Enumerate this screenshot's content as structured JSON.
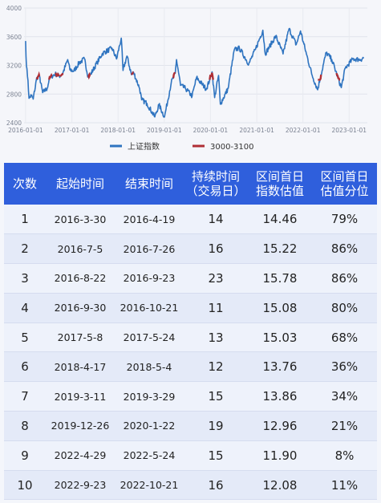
{
  "chart_data": {
    "type": "line",
    "y_ticks": [
      "4000",
      "3600",
      "3200",
      "2800",
      "2400"
    ],
    "y_range": [
      2400,
      4000
    ],
    "x_ticks": [
      "2016-01-01",
      "2017-01-01",
      "2018-01-01",
      "2019-01-01",
      "2020-01-01",
      "2021-01-01",
      "2022-01-01",
      "2023-01-01"
    ],
    "series": [
      {
        "name": "上证指数",
        "color": "#2f74c0",
        "points": [
          [
            "2016-01-01",
            3540
          ],
          [
            "2016-01-08",
            3190
          ],
          [
            "2016-01-20",
            2990
          ],
          [
            "2016-01-28",
            2740
          ],
          [
            "2016-02-15",
            2780
          ],
          [
            "2016-03-01",
            2730
          ],
          [
            "2016-03-30",
            3030
          ],
          [
            "2016-04-19",
            3050
          ],
          [
            "2016-05-15",
            2820
          ],
          [
            "2016-06-20",
            2880
          ],
          [
            "2016-07-05",
            3000
          ],
          [
            "2016-07-26",
            3050
          ],
          [
            "2016-08-22",
            3080
          ],
          [
            "2016-09-23",
            3050
          ],
          [
            "2016-10-21",
            3090
          ],
          [
            "2016-11-29",
            3280
          ],
          [
            "2016-12-16",
            3140
          ],
          [
            "2017-01-16",
            3120
          ],
          [
            "2017-03-01",
            3240
          ],
          [
            "2017-04-10",
            3290
          ],
          [
            "2017-05-10",
            3040
          ],
          [
            "2017-05-24",
            3060
          ],
          [
            "2017-07-20",
            3240
          ],
          [
            "2017-09-01",
            3370
          ],
          [
            "2017-11-14",
            3440
          ],
          [
            "2017-12-20",
            3290
          ],
          [
            "2018-01-26",
            3580
          ],
          [
            "2018-02-09",
            3130
          ],
          [
            "2018-03-12",
            3330
          ],
          [
            "2018-04-17",
            3070
          ],
          [
            "2018-05-04",
            3100
          ],
          [
            "2018-06-20",
            2880
          ],
          [
            "2018-07-06",
            2720
          ],
          [
            "2018-08-17",
            2670
          ],
          [
            "2018-10-18",
            2480
          ],
          [
            "2018-11-20",
            2650
          ],
          [
            "2019-01-03",
            2480
          ],
          [
            "2019-02-25",
            2960
          ],
          [
            "2019-03-29",
            3090
          ],
          [
            "2019-04-08",
            3280
          ],
          [
            "2019-05-10",
            2920
          ],
          [
            "2019-06-17",
            2880
          ],
          [
            "2019-08-09",
            2770
          ],
          [
            "2019-09-13",
            3030
          ],
          [
            "2019-11-29",
            2870
          ],
          [
            "2019-12-26",
            3000
          ],
          [
            "2020-01-14",
            3110
          ],
          [
            "2020-02-03",
            2750
          ],
          [
            "2020-03-05",
            3060
          ],
          [
            "2020-03-19",
            2660
          ],
          [
            "2020-05-20",
            2880
          ],
          [
            "2020-07-08",
            3420
          ],
          [
            "2020-08-17",
            3440
          ],
          [
            "2020-10-30",
            3220
          ],
          [
            "2020-12-21",
            3420
          ],
          [
            "2021-02-18",
            3690
          ],
          [
            "2021-03-09",
            3360
          ],
          [
            "2021-05-31",
            3610
          ],
          [
            "2021-07-28",
            3360
          ],
          [
            "2021-09-13",
            3710
          ],
          [
            "2021-11-09",
            3490
          ],
          [
            "2021-12-13",
            3680
          ],
          [
            "2022-01-28",
            3360
          ],
          [
            "2022-03-15",
            3060
          ],
          [
            "2022-04-27",
            2860
          ],
          [
            "2022-05-24",
            3070
          ],
          [
            "2022-07-04",
            3380
          ],
          [
            "2022-08-17",
            3280
          ],
          [
            "2022-10-31",
            2890
          ],
          [
            "2022-12-01",
            3160
          ],
          [
            "2023-01-31",
            3290
          ],
          [
            "2023-03-31",
            3280
          ],
          [
            "2023-04-28",
            3310
          ]
        ]
      },
      {
        "name": "3000-3100",
        "color": "#b02f35",
        "segments": [
          [
            "2016-03-30",
            "2016-04-19"
          ],
          [
            "2016-07-05",
            "2016-07-26"
          ],
          [
            "2016-08-22",
            "2016-09-23"
          ],
          [
            "2016-09-30",
            "2016-10-21"
          ],
          [
            "2017-05-08",
            "2017-05-24"
          ],
          [
            "2018-04-17",
            "2018-05-04"
          ],
          [
            "2019-03-11",
            "2019-03-29"
          ],
          [
            "2019-12-26",
            "2020-01-22"
          ],
          [
            "2022-04-29",
            "2022-05-24"
          ],
          [
            "2022-09-23",
            "2022-10-21"
          ]
        ]
      }
    ],
    "legend": {
      "position": "bottom-center",
      "entries": [
        "上证指数",
        "3000-3100"
      ]
    },
    "grid": {
      "horizontal": true,
      "vertical": true
    }
  },
  "table": {
    "headers": [
      [
        "次数"
      ],
      [
        "起始时间"
      ],
      [
        "结束时间"
      ],
      [
        "持续时间",
        "（交易日）"
      ],
      [
        "区间首日",
        "指数估值"
      ],
      [
        "区间首日",
        "估值分位"
      ]
    ],
    "rows": [
      [
        "1",
        "2016-3-30",
        "2016-4-19",
        "14",
        "14.46",
        "79%"
      ],
      [
        "2",
        "2016-7-5",
        "2016-7-26",
        "16",
        "15.22",
        "86%"
      ],
      [
        "3",
        "2016-8-22",
        "2016-9-23",
        "23",
        "15.78",
        "86%"
      ],
      [
        "4",
        "2016-9-30",
        "2016-10-21",
        "11",
        "15.08",
        "80%"
      ],
      [
        "5",
        "2017-5-8",
        "2017-5-24",
        "13",
        "15.03",
        "68%"
      ],
      [
        "6",
        "2018-4-17",
        "2018-5-4",
        "12",
        "13.76",
        "36%"
      ],
      [
        "7",
        "2019-3-11",
        "2019-3-29",
        "15",
        "13.86",
        "34%"
      ],
      [
        "8",
        "2019-12-26",
        "2020-1-22",
        "19",
        "12.96",
        "21%"
      ],
      [
        "9",
        "2022-4-29",
        "2022-5-24",
        "15",
        "11.90",
        "8%"
      ],
      [
        "10",
        "2022-9-23",
        "2022-10-21",
        "16",
        "12.08",
        "11%"
      ]
    ]
  }
}
